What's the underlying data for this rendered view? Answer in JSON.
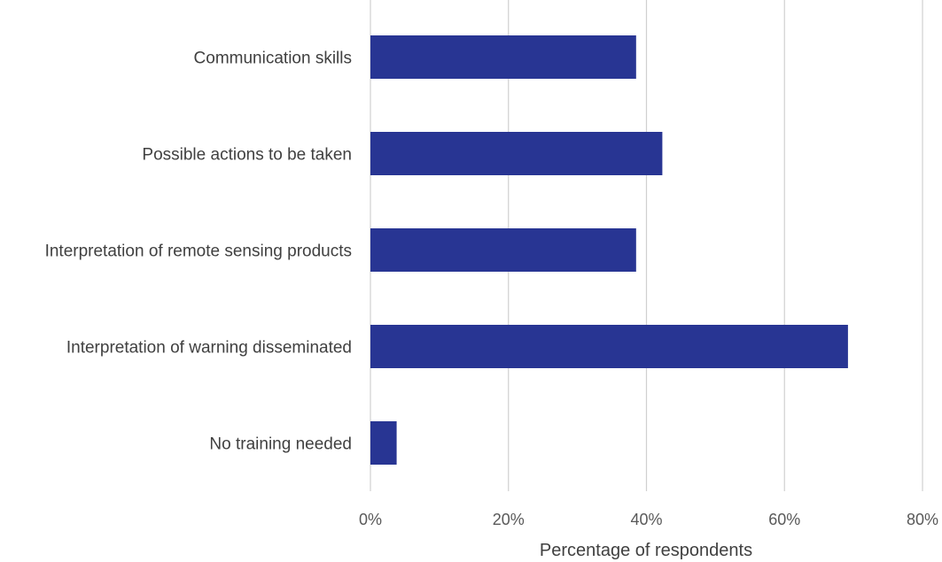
{
  "chart_data": {
    "type": "bar",
    "orientation": "horizontal",
    "title": "",
    "xlabel": "Percentage of respondents",
    "ylabel": "",
    "xlim": [
      0,
      80
    ],
    "x_ticks": [
      "0%",
      "20%",
      "40%",
      "60%",
      "80%"
    ],
    "x_tick_values": [
      0,
      20,
      40,
      60,
      80
    ],
    "grid": "vertical",
    "legend": "none",
    "bar_color": "#283593",
    "categories": [
      "Communication skills",
      "Possible actions to be taken",
      "Interpretation of remote sensing products",
      "Interpretation of warning disseminated",
      "No training needed"
    ],
    "values": [
      38.5,
      42.3,
      38.5,
      69.2,
      3.8
    ]
  }
}
